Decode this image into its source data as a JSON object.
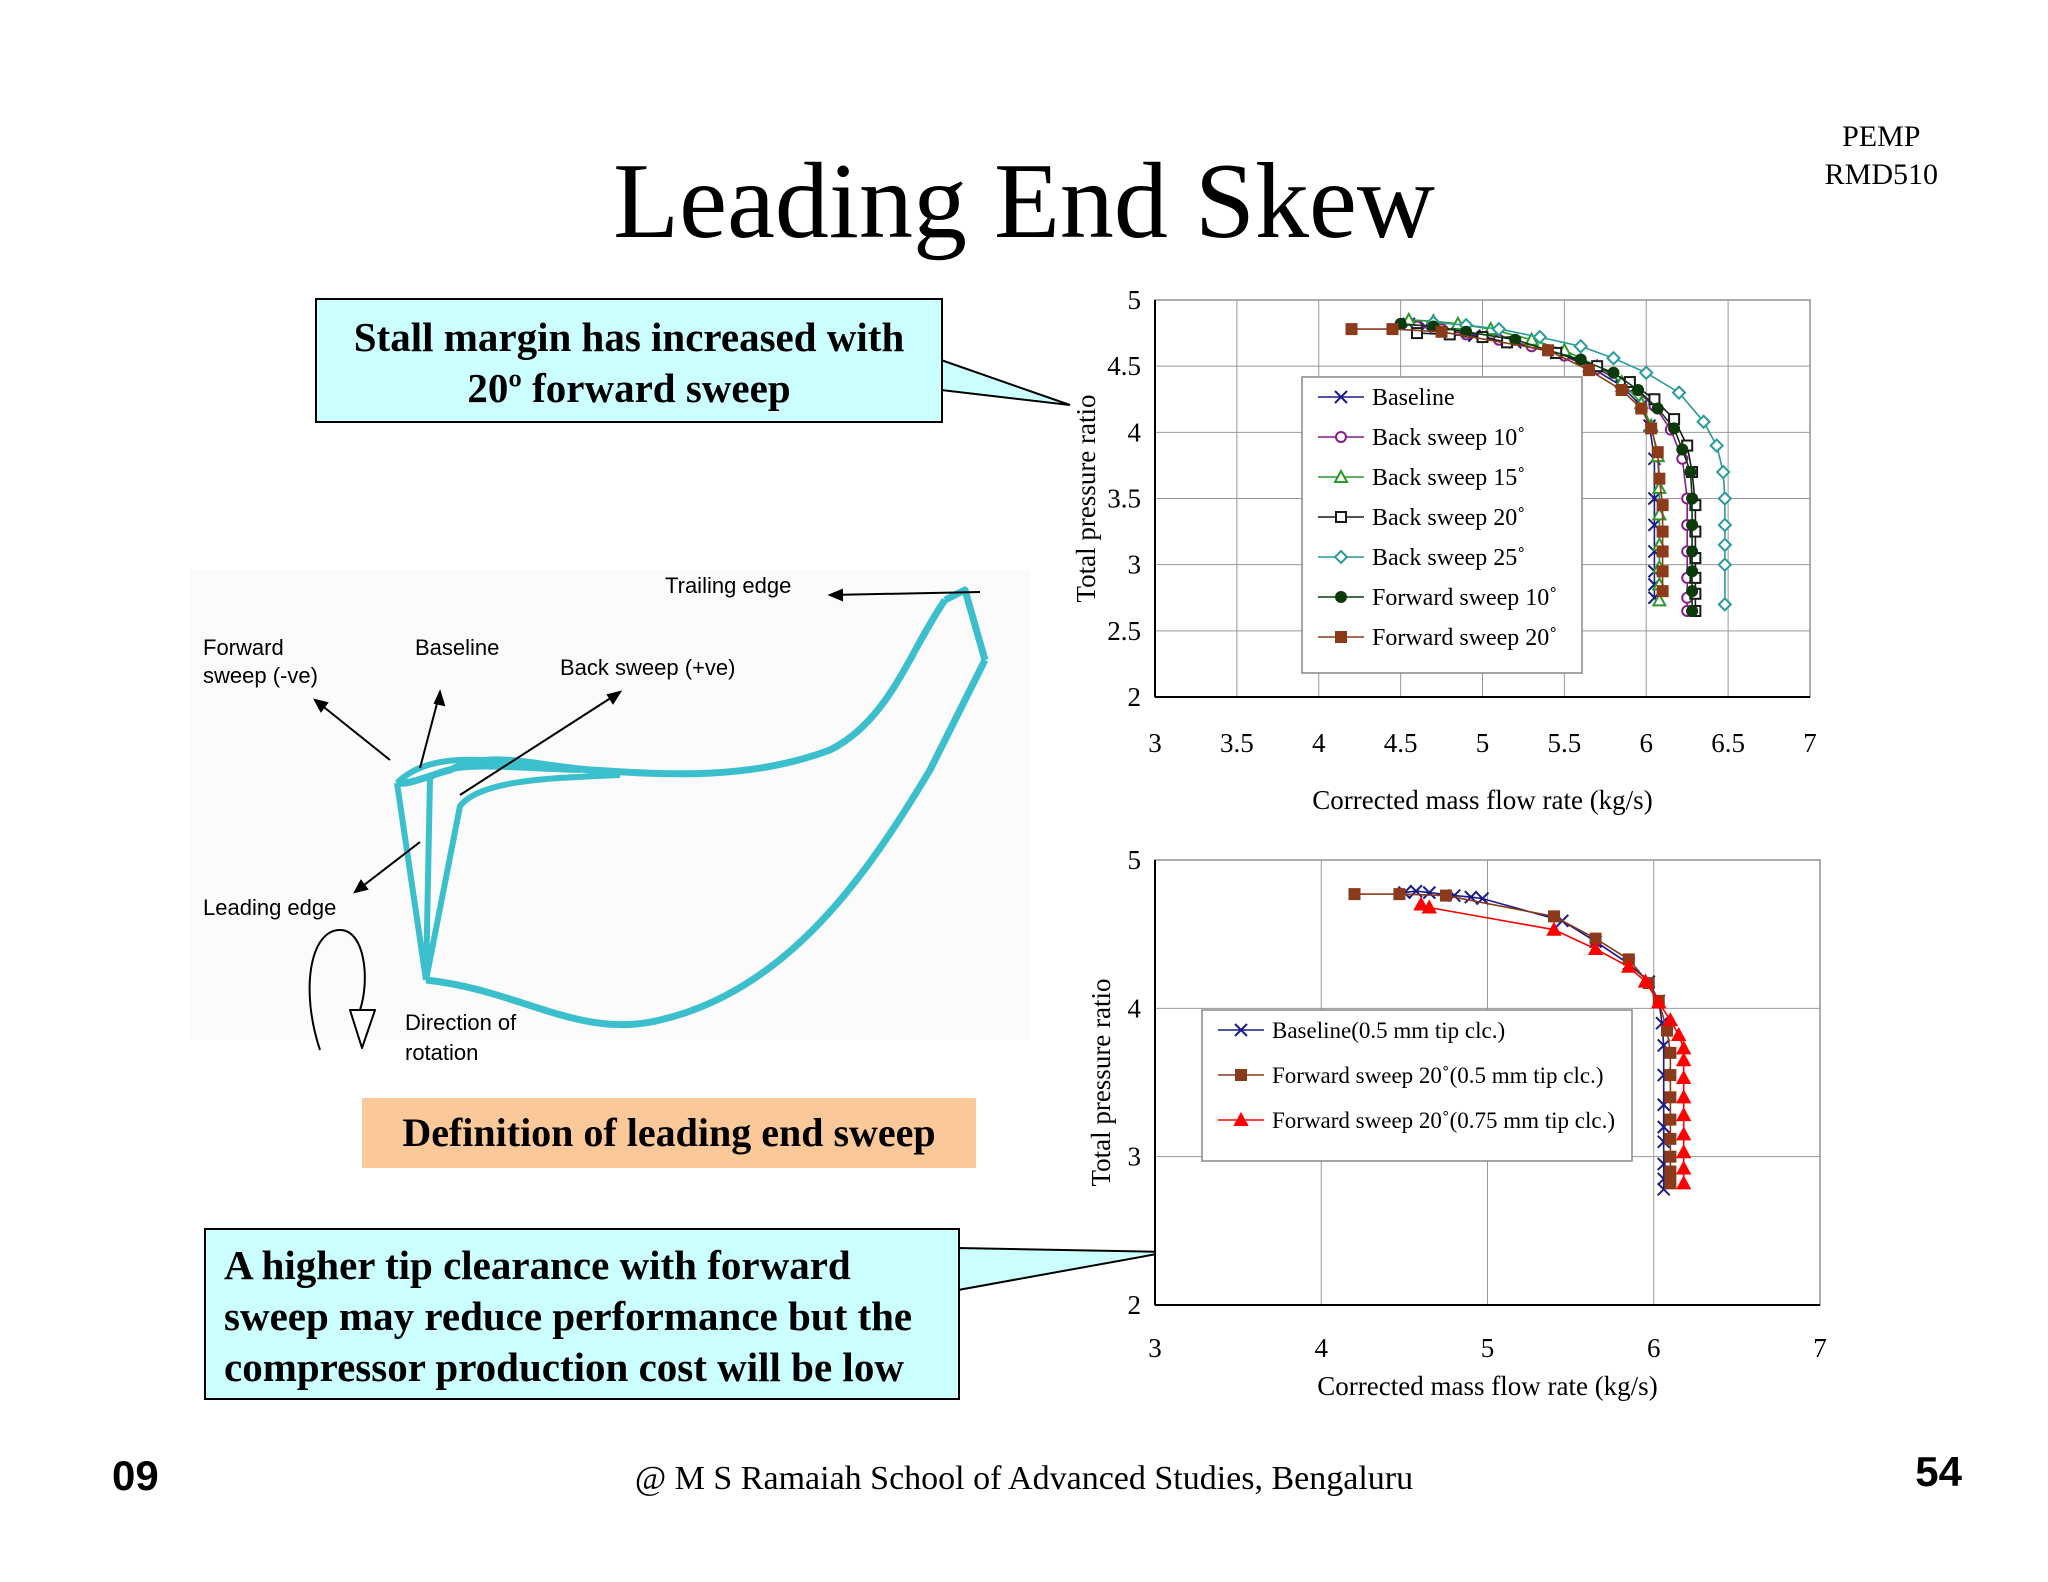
{
  "slide": {
    "title": "Leading End Skew",
    "code_line1": "PEMP",
    "code_line2": "RMD510",
    "callout_stall_line1": "Stall margin has increased with",
    "callout_stall_line2": "20º forward sweep",
    "callout_tip_line1": "A higher tip clearance with forward",
    "callout_tip_line2": "sweep may reduce performance but the",
    "callout_tip_line3": "compressor production cost will be low",
    "definition_label": "Definition of  leading end sweep",
    "footer_left": "09",
    "footer_center": "@ M S Ramaiah School of Advanced Studies, Bengaluru",
    "footer_right": "54"
  },
  "diagram": {
    "trailing_edge": "Trailing edge",
    "forward_sweep_line1": "Forward",
    "forward_sweep_line2": "sweep (-ve)",
    "baseline": "Baseline",
    "back_sweep": "Back sweep (+ve)",
    "leading_edge": "Leading edge",
    "direction_line1": "Direction of",
    "direction_line2": "rotation",
    "blade_color": "#3cbfcc"
  },
  "chart_data": [
    {
      "type": "line",
      "xlabel": "Corrected mass flow rate (kg/s)",
      "ylabel": "Total pressure ratio",
      "xlim": [
        3,
        7
      ],
      "ylim": [
        2,
        5
      ],
      "xticks": [
        3,
        3.5,
        4,
        4.5,
        5,
        5.5,
        6,
        6.5,
        7
      ],
      "yticks": [
        2,
        2.5,
        3,
        3.5,
        4,
        4.5,
        5
      ],
      "xtick_labels": [
        "3",
        "3.5",
        "4",
        "4.5",
        "5",
        "5.5",
        "6",
        "6.5",
        "7"
      ],
      "ytick_labels": [
        "2",
        "2.5",
        "3",
        "3.5",
        "4",
        "4.5",
        "5"
      ],
      "grid": true,
      "legend": "center-right",
      "series": [
        {
          "name": "Baseline",
          "color": "#1a1a8c",
          "marker": "x",
          "x": [
            4.55,
            4.65,
            4.8,
            4.95,
            5.2,
            5.45,
            5.65,
            5.85,
            5.97,
            6.02,
            6.05,
            6.05,
            6.05,
            6.05,
            6.05,
            6.05,
            6.05
          ],
          "y": [
            4.82,
            4.8,
            4.77,
            4.73,
            4.68,
            4.6,
            4.5,
            4.35,
            4.2,
            4.05,
            3.8,
            3.5,
            3.3,
            3.1,
            2.95,
            2.85,
            2.75
          ]
        },
        {
          "name": "Back sweep 10˚",
          "color": "#8b1a8b",
          "marker": "circle-open",
          "x": [
            4.6,
            4.75,
            4.9,
            5.1,
            5.3,
            5.5,
            5.7,
            5.9,
            6.05,
            6.15,
            6.22,
            6.25,
            6.25,
            6.25,
            6.25,
            6.25,
            6.25
          ],
          "y": [
            4.8,
            4.78,
            4.74,
            4.7,
            4.65,
            4.58,
            4.48,
            4.35,
            4.2,
            4.02,
            3.8,
            3.5,
            3.3,
            3.1,
            2.9,
            2.75,
            2.65
          ]
        },
        {
          "name": "Back sweep 15˚",
          "color": "#2a9a2a",
          "marker": "triangle-open",
          "x": [
            4.55,
            4.7,
            4.85,
            5.05,
            5.3,
            5.5,
            5.7,
            5.85,
            5.97,
            6.03,
            6.07,
            6.08,
            6.08,
            6.08,
            6.08,
            6.08,
            6.08
          ],
          "y": [
            4.85,
            4.84,
            4.82,
            4.78,
            4.7,
            4.62,
            4.5,
            4.38,
            4.22,
            4.05,
            3.82,
            3.58,
            3.38,
            3.15,
            2.98,
            2.85,
            2.73
          ]
        },
        {
          "name": "Back sweep 20˚",
          "color": "#1a1a1a",
          "marker": "square-open",
          "x": [
            4.6,
            4.8,
            5.0,
            5.15,
            5.45,
            5.7,
            5.9,
            6.05,
            6.17,
            6.25,
            6.28,
            6.3,
            6.3,
            6.3,
            6.3,
            6.3,
            6.3
          ],
          "y": [
            4.75,
            4.74,
            4.72,
            4.68,
            4.6,
            4.5,
            4.38,
            4.25,
            4.1,
            3.9,
            3.7,
            3.45,
            3.25,
            3.05,
            2.9,
            2.78,
            2.65
          ]
        },
        {
          "name": "Back sweep 25˚",
          "color": "#2a9a9a",
          "marker": "diamond-open",
          "x": [
            4.7,
            4.9,
            5.1,
            5.35,
            5.6,
            5.8,
            6.0,
            6.2,
            6.35,
            6.43,
            6.47,
            6.48,
            6.48,
            6.48,
            6.48,
            6.48
          ],
          "y": [
            4.83,
            4.81,
            4.78,
            4.72,
            4.65,
            4.56,
            4.45,
            4.3,
            4.08,
            3.9,
            3.7,
            3.5,
            3.3,
            3.15,
            3.0,
            2.7
          ]
        },
        {
          "name": "Forward sweep 10˚",
          "color": "#0a3a0a",
          "marker": "circle-filled",
          "x": [
            4.5,
            4.7,
            4.9,
            5.2,
            5.4,
            5.6,
            5.8,
            5.95,
            6.07,
            6.17,
            6.22,
            6.27,
            6.28,
            6.28,
            6.28,
            6.28,
            6.28,
            6.28
          ],
          "y": [
            4.82,
            4.8,
            4.76,
            4.7,
            4.62,
            4.55,
            4.45,
            4.32,
            4.18,
            4.03,
            3.87,
            3.7,
            3.5,
            3.3,
            3.1,
            2.95,
            2.8,
            2.65
          ]
        },
        {
          "name": "Forward sweep 20˚",
          "color": "#8b3a1a",
          "marker": "square-filled",
          "x": [
            4.2,
            4.45,
            4.75,
            5.4,
            5.65,
            5.85,
            5.97,
            6.03,
            6.07,
            6.08,
            6.1,
            6.1,
            6.1,
            6.1,
            6.1
          ],
          "y": [
            4.78,
            4.78,
            4.76,
            4.62,
            4.47,
            4.32,
            4.18,
            4.03,
            3.85,
            3.65,
            3.45,
            3.25,
            3.1,
            2.95,
            2.8
          ]
        }
      ]
    },
    {
      "type": "line",
      "xlabel": "Corrected mass flow rate (kg/s)",
      "ylabel": "Total pressure ratio",
      "xlim": [
        3,
        7
      ],
      "ylim": [
        2,
        5
      ],
      "xticks": [
        3,
        4,
        5,
        6,
        7
      ],
      "yticks": [
        2,
        3,
        4,
        5
      ],
      "xtick_labels": [
        "3",
        "4",
        "5",
        "6",
        "7"
      ],
      "ytick_labels": [
        "2",
        "3",
        "4",
        "5"
      ],
      "grid": true,
      "legend": "center",
      "series": [
        {
          "name": "Baseline(0.5 mm tip clc.)",
          "color": "#1a1a8c",
          "marker": "x",
          "x": [
            4.5,
            4.57,
            4.65,
            4.8,
            4.9,
            4.97,
            5.45,
            5.65,
            5.85,
            5.97,
            6.03,
            6.05,
            6.06,
            6.06,
            6.06,
            6.06,
            6.06,
            6.06,
            6.06,
            6.06
          ],
          "y": [
            4.78,
            4.79,
            4.78,
            4.76,
            4.75,
            4.74,
            4.59,
            4.45,
            4.3,
            4.18,
            4.05,
            3.9,
            3.75,
            3.55,
            3.35,
            3.2,
            3.1,
            2.95,
            2.85,
            2.78
          ]
        },
        {
          "name": "Forward sweep 20˚(0.5 mm tip clc.)",
          "color": "#8b3a1a",
          "marker": "square-filled",
          "x": [
            4.2,
            4.47,
            4.75,
            5.4,
            5.65,
            5.85,
            5.97,
            6.03,
            6.08,
            6.1,
            6.1,
            6.1,
            6.1,
            6.1,
            6.1,
            6.1,
            6.1
          ],
          "y": [
            4.77,
            4.77,
            4.76,
            4.62,
            4.47,
            4.33,
            4.17,
            4.05,
            3.85,
            3.7,
            3.55,
            3.4,
            3.25,
            3.12,
            3.0,
            2.9,
            2.82
          ]
        },
        {
          "name": "Forward sweep 20˚(0.75 mm tip clc.)",
          "color": "#ff0000",
          "marker": "triangle-filled",
          "x": [
            4.6,
            4.65,
            5.4,
            5.65,
            5.85,
            5.95,
            6.03,
            6.1,
            6.15,
            6.18,
            6.18,
            6.18,
            6.18,
            6.18,
            6.18,
            6.18,
            6.18,
            6.18
          ],
          "y": [
            4.7,
            4.68,
            4.53,
            4.4,
            4.28,
            4.18,
            4.04,
            3.92,
            3.82,
            3.73,
            3.65,
            3.53,
            3.4,
            3.28,
            3.15,
            3.03,
            2.92,
            2.82
          ]
        }
      ]
    }
  ]
}
